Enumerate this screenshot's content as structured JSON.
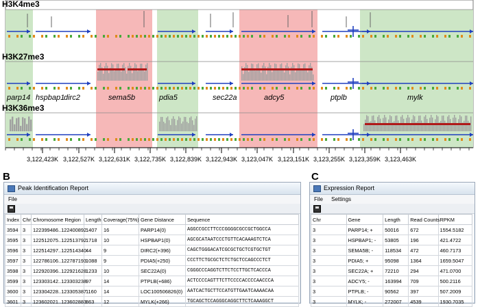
{
  "genome": {
    "tracks": [
      "H3K4me3",
      "H3K27me3",
      "H3K36me3"
    ],
    "genes": [
      "parp14",
      "hspbap1",
      "dirc2",
      "sema5b",
      "pdia5",
      "sec22a",
      "adcy5",
      "ptplb",
      "mylk"
    ],
    "ticks": [
      "3,122,423K",
      "3,122,527K",
      "3,122,631K",
      "3,122,735K",
      "3,122,839K",
      "3,122,943K",
      "3,123,047K",
      "3,123,151K",
      "3,123,255K",
      "3,123,359K",
      "3,123,463K"
    ],
    "colors": {
      "green_region": "#cde6c6",
      "red_region": "#f6b8b8",
      "gene_line": "#1f3fbf",
      "signal": "#a0a0a0",
      "signal_dark": "#b01818"
    }
  },
  "panel_b": {
    "letter": "B",
    "title": "Peak Identification Report",
    "menu": [
      "File"
    ],
    "columns": [
      "Index",
      "Chr",
      "Chromosome Region",
      "Length",
      "Coverage(75%)",
      "Gene Distance",
      "Sequence"
    ],
    "rows": [
      [
        "3594",
        "3",
        "122399486..122400892",
        "1407",
        "16",
        "PARP14(0)",
        "AGGCCGCCTTCCCGGGGCGCCGCTGGCCA"
      ],
      [
        "3595",
        "3",
        "122512075..122513792",
        "1718",
        "10",
        "HSPBAP1(0)",
        "AGCGCATAATCCCTGTTCACAAAGTCTCA"
      ],
      [
        "3596",
        "3",
        "122514297..122514340",
        "44",
        "9",
        "DIRC2(+396)",
        "CAGCTGGGACATCGCGCTGCTCGTGCTGT"
      ],
      [
        "3597",
        "3",
        "122786106..122787193",
        "1088",
        "9",
        "PDIA5(+250)",
        "CCCTTCTGCGCTCTCTGCTCCAGCCCTCT"
      ],
      [
        "3598",
        "3",
        "122920396..122921628",
        "1233",
        "10",
        "SEC22A(0)",
        "CGGGCCCAGGTCTTCTCCTTGCTCACCCA"
      ],
      [
        "3599",
        "3",
        "123303142..123303238",
        "97",
        "14",
        "PTPLB(+686)",
        "ACTCCCCAGTTTCTTCCCCACCCCAACCCA"
      ],
      [
        "3600",
        "3",
        "123304228..123305387",
        "1160",
        "14",
        "LOC100506826(0)",
        "AATCACTGCTTCCATGTTGAATCAAAACAA"
      ],
      [
        "3601",
        "3",
        "123602021..123602883",
        "863",
        "12",
        "MYLK(+266)",
        "TGCAGCTCCAGGGCAGGCTTCTCAAAGGCT"
      ]
    ]
  },
  "panel_c": {
    "letter": "C",
    "title": "Expression Report",
    "menu": [
      "File",
      "Settings"
    ],
    "columns": [
      "Chr",
      "Gene",
      "Length",
      "Read Counts",
      "RPKM"
    ],
    "rows": [
      [
        "3",
        "PARP14; +",
        "50016",
        "672",
        "1554.5182"
      ],
      [
        "3",
        "HSPBAP1; -",
        "53805",
        "196",
        "421.4722"
      ],
      [
        "3",
        "SEMA5B; -",
        "118534",
        "472",
        "460.7173"
      ],
      [
        "3",
        "PDIA5; +",
        "95098",
        "1364",
        "1659.5047"
      ],
      [
        "3",
        "SEC22A; +",
        "72210",
        "294",
        "471.0700"
      ],
      [
        "3",
        "ADCY5; -",
        "163994",
        "709",
        "500.2116"
      ],
      [
        "3",
        "PTPLB; -",
        "90562",
        "397",
        "507.2009"
      ],
      [
        "3",
        "MYLK; -",
        "272007",
        "4539",
        "1930.7035"
      ]
    ]
  }
}
